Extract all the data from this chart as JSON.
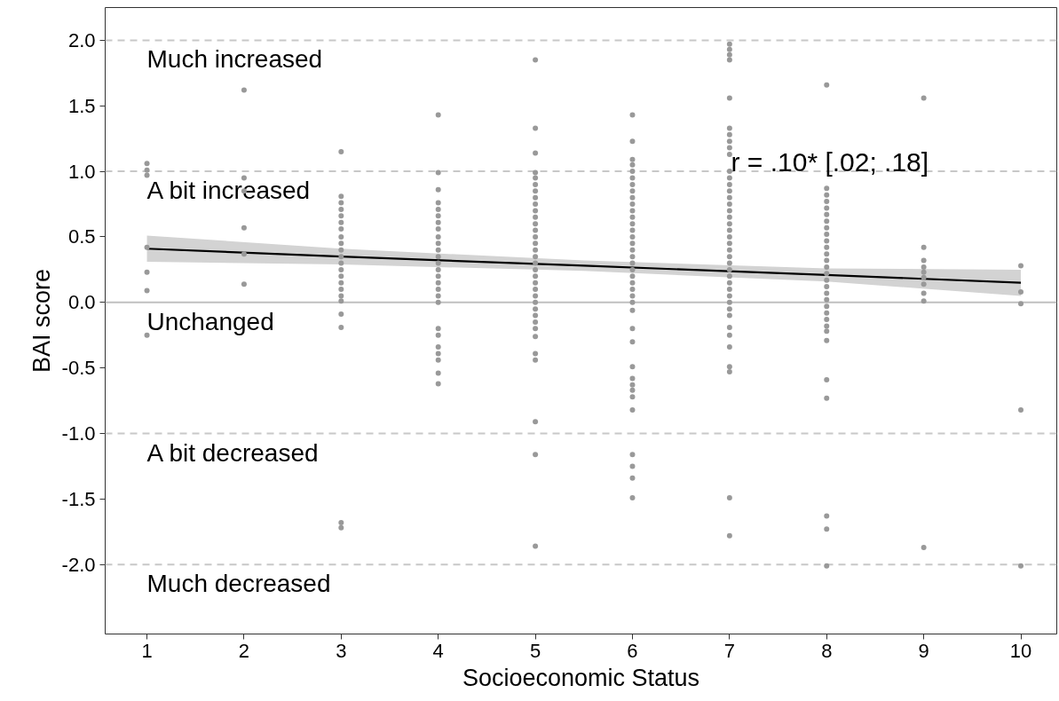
{
  "chart_data": {
    "type": "scatter",
    "xlabel": "Socioeconomic Status",
    "ylabel": "BAI score",
    "xlim": [
      0.57,
      10.37
    ],
    "ylim": [
      -2.53,
      2.25
    ],
    "xticks": [
      1,
      2,
      3,
      4,
      5,
      6,
      7,
      8,
      9,
      10
    ],
    "yticks": [
      {
        "value": 2,
        "label": "2.0"
      },
      {
        "value": 1.5,
        "label": "1.5"
      },
      {
        "value": 1,
        "label": "1.0"
      },
      {
        "value": 0.5,
        "label": "0.5"
      },
      {
        "value": 0,
        "label": "0.0"
      },
      {
        "value": -0.5,
        "label": "-0.5"
      },
      {
        "value": -1,
        "label": "-1.0"
      },
      {
        "value": -1.5,
        "label": "-1.5"
      },
      {
        "value": -2,
        "label": "-2.0"
      }
    ],
    "grid": false,
    "marker": "circle",
    "ref_lines": [
      {
        "axis": "y",
        "value": 2,
        "label": "Much increased",
        "color": "#c8c8c8",
        "line_style": "dashed"
      },
      {
        "axis": "y",
        "value": 1,
        "label": "A bit increased",
        "color": "#c8c8c8",
        "line_style": "dashed"
      },
      {
        "axis": "y",
        "value": 0,
        "label": "Unchanged",
        "color": "#c0c0c0",
        "line_style": "solid"
      },
      {
        "axis": "y",
        "value": -1,
        "label": "A bit decreased",
        "color": "#c8c8c8",
        "line_style": "dashed"
      },
      {
        "axis": "y",
        "value": -2,
        "label": "Much decreased",
        "color": "#c8c8c8",
        "line_style": "dashed"
      }
    ],
    "annotations": [
      "r = .10* [.02; .18]"
    ],
    "series": [
      {
        "color": "#999999",
        "x": [
          1,
          1,
          1,
          1,
          1,
          1,
          1,
          2,
          2,
          2,
          2,
          2,
          2,
          3,
          3,
          3,
          3,
          3,
          3,
          3,
          3,
          3,
          3,
          3,
          3,
          3,
          3,
          3,
          3,
          3,
          3,
          3,
          3,
          3,
          3,
          4,
          4,
          4,
          4,
          4,
          4,
          4,
          4,
          4,
          4,
          4,
          4,
          4,
          4,
          4,
          4,
          4,
          4,
          4,
          4,
          4,
          4,
          4,
          4,
          4,
          4,
          5,
          5,
          5,
          5,
          5,
          5,
          5,
          5,
          5,
          5,
          5,
          5,
          5,
          5,
          5,
          5,
          5,
          5,
          5,
          5,
          5,
          5,
          5,
          5,
          5,
          5,
          5,
          5,
          5,
          5,
          5,
          5,
          5,
          5,
          6,
          6,
          6,
          6,
          6,
          6,
          6,
          6,
          6,
          6,
          6,
          6,
          6,
          6,
          6,
          6,
          6,
          6,
          6,
          6,
          6,
          6,
          6,
          6,
          6,
          6,
          6,
          6,
          6,
          6,
          6,
          6,
          6,
          6,
          6,
          6,
          6,
          6,
          7,
          7,
          7,
          7,
          7,
          7,
          7,
          7,
          7,
          7,
          7,
          7,
          7,
          7,
          7,
          7,
          7,
          7,
          7,
          7,
          7,
          7,
          7,
          7,
          7,
          7,
          7,
          7,
          7,
          7,
          7,
          7,
          7,
          7,
          7,
          7,
          7,
          7,
          7,
          7,
          8,
          8,
          8,
          8,
          8,
          8,
          8,
          8,
          8,
          8,
          8,
          8,
          8,
          8,
          8,
          8,
          8,
          8,
          8,
          8,
          8,
          8,
          8,
          8,
          8,
          8,
          8,
          8,
          8,
          8,
          9,
          9,
          9,
          9,
          9,
          9,
          9,
          9,
          9,
          9,
          10,
          10,
          10,
          10,
          10
        ],
        "values": [
          1.06,
          1.01,
          0.97,
          0.42,
          0.23,
          0.09,
          -0.25,
          1.62,
          0.95,
          0.85,
          0.57,
          0.37,
          0.14,
          1.15,
          0.81,
          0.76,
          0.71,
          0.66,
          0.61,
          0.56,
          0.5,
          0.45,
          0.4,
          0.35,
          0.3,
          0.25,
          0.2,
          0.15,
          0.1,
          0.05,
          0.01,
          -0.09,
          -0.19,
          -1.68,
          -1.72,
          1.43,
          0.99,
          0.86,
          0.76,
          0.71,
          0.66,
          0.61,
          0.56,
          0.5,
          0.45,
          0.4,
          0.35,
          0.3,
          0.25,
          0.2,
          0.15,
          0.1,
          0.05,
          0,
          -0.2,
          -0.25,
          -0.34,
          -0.39,
          -0.44,
          -0.54,
          -0.62,
          1.85,
          1.33,
          1.14,
          0.99,
          0.95,
          0.9,
          0.85,
          0.8,
          0.75,
          0.7,
          0.65,
          0.6,
          0.55,
          0.5,
          0.45,
          0.4,
          0.35,
          0.3,
          0.25,
          0.2,
          0.15,
          0.1,
          0.05,
          0,
          -0.05,
          -0.1,
          -0.15,
          -0.2,
          -0.26,
          -0.39,
          -0.44,
          -0.91,
          -1.16,
          -1.86,
          1.43,
          1.23,
          1.09,
          1.05,
          1.0,
          0.95,
          0.9,
          0.85,
          0.8,
          0.75,
          0.7,
          0.65,
          0.6,
          0.55,
          0.5,
          0.45,
          0.4,
          0.35,
          0.3,
          0.25,
          0.2,
          0.15,
          0.1,
          0.05,
          0,
          -0.06,
          -0.2,
          -0.3,
          -0.49,
          -0.58,
          -0.63,
          -0.67,
          -0.72,
          -0.82,
          -1.16,
          -1.25,
          -1.34,
          -1.49,
          1.97,
          1.93,
          1.89,
          1.85,
          1.56,
          1.33,
          1.28,
          1.23,
          1.18,
          1.13,
          1.0,
          0.95,
          0.9,
          0.85,
          0.8,
          0.75,
          0.7,
          0.65,
          0.6,
          0.55,
          0.5,
          0.45,
          0.4,
          0.35,
          0.3,
          0.25,
          0.2,
          0.15,
          0.1,
          0.05,
          0,
          -0.05,
          -0.1,
          -0.19,
          -0.25,
          -0.34,
          -0.49,
          -0.53,
          -1.49,
          -1.78,
          1.66,
          0.87,
          0.82,
          0.77,
          0.72,
          0.67,
          0.62,
          0.57,
          0.52,
          0.47,
          0.42,
          0.37,
          0.32,
          0.27,
          0.22,
          0.17,
          0.12,
          0.07,
          0.02,
          -0.03,
          -0.08,
          -0.13,
          -0.18,
          -0.22,
          -0.29,
          -0.59,
          -0.73,
          -1.63,
          -1.73,
          -2.01,
          1.56,
          0.42,
          0.32,
          0.27,
          0.23,
          0.19,
          0.14,
          0.07,
          0.01,
          -1.87,
          0.28,
          0.08,
          -0.01,
          -0.82,
          -2.01
        ]
      },
      {
        "type": "line",
        "marker": "none",
        "color": "#000000",
        "x": [
          1,
          3,
          5.5,
          8,
          10
        ],
        "values": [
          0.41,
          0.35,
          0.28,
          0.21,
          0.15
        ],
        "lower": [
          0.31,
          0.29,
          0.24,
          0.16,
          0.05
        ],
        "upper": [
          0.51,
          0.41,
          0.32,
          0.26,
          0.25
        ]
      }
    ]
  }
}
